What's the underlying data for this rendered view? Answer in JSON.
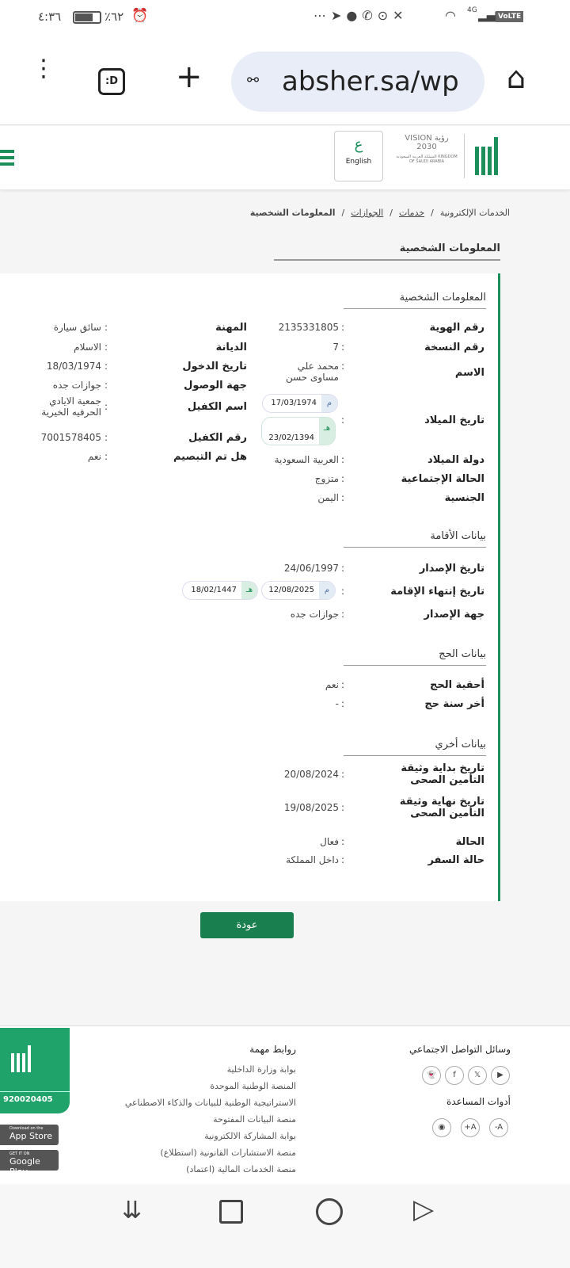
{
  "status_bar": {
    "time": "٤:٣٦",
    "battery": "٪٦٢",
    "network": "4G",
    "volte": "VoLTE"
  },
  "browser": {
    "url": "absher.sa/wp",
    "tab_count": ":D"
  },
  "header": {
    "english_label": "English",
    "vision_text": "VISION رؤية 2030",
    "vision_sub": "المملكة العربية السعودية KINGDOM OF SAUDI ARABIA"
  },
  "breadcrumb": [
    "الخدمات الإلكترونية",
    "خدمات",
    "الجوازات",
    "المعلومات الشخصية"
  ],
  "page_title": "المعلومات الشخصية",
  "personal": {
    "title": "المعلومات الشخصية",
    "left": [
      {
        "label": "رقم الهوية",
        "value": "2135331805"
      },
      {
        "label": "رقم النسخة",
        "value": "7"
      },
      {
        "label": "الاسم",
        "value": "محمد علي مساوى حسن"
      },
      {
        "label": "تاريخ الميلاد",
        "gregorian": "17/03/1974",
        "hijri": "23/02/1394",
        "g_mark": "م",
        "h_mark": "هـ"
      },
      {
        "label": "دولة الميلاد",
        "value": "العربية السعودية"
      },
      {
        "label": "الحالة الإجتماعية",
        "value": "متزوج"
      },
      {
        "label": "الجنسية",
        "value": "اليمن"
      }
    ],
    "right": [
      {
        "label": "المهنة",
        "value": "سائق سيارة"
      },
      {
        "label": "الديانة",
        "value": "الاسلام"
      },
      {
        "label": "تاريخ الدخول",
        "value": "18/03/1974"
      },
      {
        "label": "جهة الوصول",
        "value": "جوازات جده"
      },
      {
        "label": "اسم الكفيل",
        "value": "جمعية الايادي الحرفيه الخيرية"
      },
      {
        "label": "رقم الكفيل",
        "value": "7001578405"
      },
      {
        "label": "هل تم التبصيم",
        "value": "نعم"
      }
    ]
  },
  "residency": {
    "title": "بيانات الأقامة",
    "rows": [
      {
        "label": "تاريخ الإصدار",
        "value": "24/06/1997"
      },
      {
        "label": "تاريخ إنتهاء الإقامة",
        "gregorian": "12/08/2025",
        "hijri": "18/02/1447"
      },
      {
        "label": "جهة الإصدار",
        "value": "جوازات جده"
      }
    ]
  },
  "hajj": {
    "title": "بيانات الحج",
    "rows": [
      {
        "label": "أحقية الحج",
        "value": "نعم"
      },
      {
        "label": "أخر سنة حج",
        "value": "-"
      }
    ]
  },
  "other": {
    "title": "بيانات أخري",
    "rows": [
      {
        "label": "تاريخ بداية وثيقة التأمين الصحى",
        "value": "20/08/2024"
      },
      {
        "label": "تاريخ نهاية وثيقة التأمين الصحى",
        "value": "19/08/2025"
      },
      {
        "label": "الحالة",
        "value": "فعال"
      },
      {
        "label": "حالة السفر",
        "value": "داخل المملكة"
      }
    ]
  },
  "back_button": "عودة",
  "footer": {
    "social_title": "وسائل التواصل الاجتماعي",
    "tools_title": "أدوات المساعدة",
    "tools": [
      "+A",
      "-A"
    ],
    "links_title": "روابط مهمة",
    "links": [
      "بوابة وزارة الداخلية",
      "المنصة الوطنية الموحدة",
      "الاستراتيجية الوطنية للبيانات والذكاء الاصطناعي",
      "منصة البيانات المفتوحة",
      "بوابة المشاركة الالكترونية",
      "منصة الاستشارات القانونية (استطلاع)",
      "منصة الخدمات المالية (اعتماد)"
    ],
    "phone": "920020405",
    "app_store": {
      "small": "Download on the",
      "big": "App Store"
    },
    "google_play": {
      "small": "GET IT ON",
      "big": "Google Play"
    }
  },
  "colors": {
    "brand_green": "#1a8f5a",
    "footer_green": "#1fa36b"
  }
}
